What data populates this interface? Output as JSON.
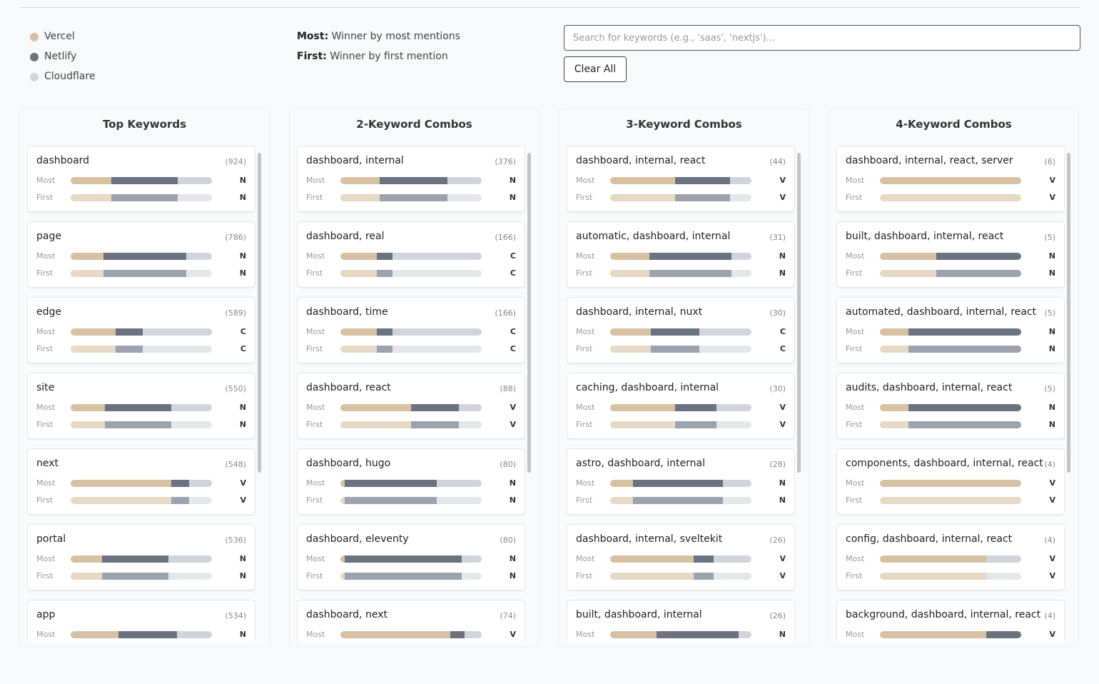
{
  "legend": [
    {
      "name": "Vercel",
      "color": "#d6c2a3",
      "light_color": "#e6d9c5"
    },
    {
      "name": "Netlify",
      "color": "#6b7280",
      "light_color": "#9ca3af"
    },
    {
      "name": "Cloudflare",
      "color": "#d1d5db",
      "light_color": "#e5e7eb"
    }
  ],
  "definitions": [
    {
      "term": "Most:",
      "text": "Winner by most mentions"
    },
    {
      "term": "First:",
      "text": "Winner by first mention"
    }
  ],
  "search": {
    "placeholder": "Search for keywords (e.g., 'saas', 'nextjs')..."
  },
  "clear_button": "Clear All",
  "row_labels": {
    "most": "Most",
    "first": "First"
  },
  "columns": [
    {
      "title": "Top Keywords",
      "cards": [
        {
          "keyword": "dashboard",
          "count": "(924)",
          "most": {
            "shares": [
              29,
              47,
              24
            ],
            "winner": "N"
          },
          "first": {
            "shares": [
              29,
              47,
              24
            ],
            "winner": "N"
          }
        },
        {
          "keyword": "page",
          "count": "(786)",
          "most": {
            "shares": [
              23,
              59,
              18
            ],
            "winner": "N"
          },
          "first": {
            "shares": [
              23,
              59,
              18
            ],
            "winner": "N"
          }
        },
        {
          "keyword": "edge",
          "count": "(589)",
          "most": {
            "shares": [
              32,
              19,
              49
            ],
            "winner": "C"
          },
          "first": {
            "shares": [
              32,
              19,
              49
            ],
            "winner": "C"
          }
        },
        {
          "keyword": "site",
          "count": "(550)",
          "most": {
            "shares": [
              24,
              47,
              29
            ],
            "winner": "N"
          },
          "first": {
            "shares": [
              24,
              47,
              29
            ],
            "winner": "N"
          }
        },
        {
          "keyword": "next",
          "count": "(548)",
          "most": {
            "shares": [
              71,
              13,
              16
            ],
            "winner": "V"
          },
          "first": {
            "shares": [
              71,
              13,
              16
            ],
            "winner": "V"
          }
        },
        {
          "keyword": "portal",
          "count": "(536)",
          "most": {
            "shares": [
              22,
              47,
              31
            ],
            "winner": "N"
          },
          "first": {
            "shares": [
              22,
              47,
              31
            ],
            "winner": "N"
          }
        },
        {
          "keyword": "app",
          "count": "(534)",
          "most": {
            "shares": [
              34,
              41,
              25
            ],
            "winner": "N"
          }
        }
      ]
    },
    {
      "title": "2-Keyword Combos",
      "cards": [
        {
          "keyword": "dashboard, internal",
          "count": "(376)",
          "most": {
            "shares": [
              28,
              48,
              24
            ],
            "winner": "N"
          },
          "first": {
            "shares": [
              28,
              48,
              24
            ],
            "winner": "N"
          }
        },
        {
          "keyword": "dashboard, real",
          "count": "(166)",
          "most": {
            "shares": [
              26,
              11,
              63
            ],
            "winner": "C"
          },
          "first": {
            "shares": [
              26,
              11,
              63
            ],
            "winner": "C"
          }
        },
        {
          "keyword": "dashboard, time",
          "count": "(166)",
          "most": {
            "shares": [
              26,
              11,
              63
            ],
            "winner": "C"
          },
          "first": {
            "shares": [
              26,
              11,
              63
            ],
            "winner": "C"
          }
        },
        {
          "keyword": "dashboard, react",
          "count": "(88)",
          "most": {
            "shares": [
              50,
              34,
              16
            ],
            "winner": "V"
          },
          "first": {
            "shares": [
              50,
              34,
              16
            ],
            "winner": "V"
          }
        },
        {
          "keyword": "dashboard, hugo",
          "count": "(80)",
          "most": {
            "shares": [
              3,
              65,
              32
            ],
            "winner": "N"
          },
          "first": {
            "shares": [
              3,
              65,
              32
            ],
            "winner": "N"
          }
        },
        {
          "keyword": "dashboard, eleventy",
          "count": "(80)",
          "most": {
            "shares": [
              3,
              83,
              14
            ],
            "winner": "N"
          },
          "first": {
            "shares": [
              3,
              83,
              14
            ],
            "winner": "N"
          }
        },
        {
          "keyword": "dashboard, next",
          "count": "(74)",
          "most": {
            "shares": [
              78,
              10,
              12
            ],
            "winner": "V"
          }
        }
      ]
    },
    {
      "title": "3-Keyword Combos",
      "cards": [
        {
          "keyword": "dashboard, internal, react",
          "count": "(44)",
          "most": {
            "shares": [
              46,
              39,
              15
            ],
            "winner": "V"
          },
          "first": {
            "shares": [
              46,
              39,
              15
            ],
            "winner": "V"
          }
        },
        {
          "keyword": "automatic, dashboard, internal",
          "count": "(31)",
          "most": {
            "shares": [
              28,
              58,
              14
            ],
            "winner": "N"
          },
          "first": {
            "shares": [
              28,
              58,
              14
            ],
            "winner": "N"
          }
        },
        {
          "keyword": "dashboard, internal, nuxt",
          "count": "(30)",
          "most": {
            "shares": [
              29,
              34,
              37
            ],
            "winner": "C"
          },
          "first": {
            "shares": [
              29,
              34,
              37
            ],
            "winner": "C"
          }
        },
        {
          "keyword": "caching, dashboard, internal",
          "count": "(30)",
          "most": {
            "shares": [
              46,
              29,
              25
            ],
            "winner": "V"
          },
          "first": {
            "shares": [
              46,
              29,
              25
            ],
            "winner": "V"
          }
        },
        {
          "keyword": "astro, dashboard, internal",
          "count": "(28)",
          "most": {
            "shares": [
              16,
              64,
              20
            ],
            "winner": "N"
          },
          "first": {
            "shares": [
              16,
              64,
              20
            ],
            "winner": "N"
          }
        },
        {
          "keyword": "dashboard, internal, sveltekit",
          "count": "(26)",
          "most": {
            "shares": [
              59,
              14,
              27
            ],
            "winner": "V"
          },
          "first": {
            "shares": [
              59,
              14,
              27
            ],
            "winner": "V"
          }
        },
        {
          "keyword": "built, dashboard, internal",
          "count": "(26)",
          "most": {
            "shares": [
              33,
              58,
              9
            ],
            "winner": "N"
          }
        }
      ]
    },
    {
      "title": "4-Keyword Combos",
      "cards": [
        {
          "keyword": "dashboard, internal, react, server",
          "count": "(6)",
          "most": {
            "shares": [
              100,
              0,
              0
            ],
            "winner": "V"
          },
          "first": {
            "shares": [
              100,
              0,
              0
            ],
            "winner": "V"
          }
        },
        {
          "keyword": "built, dashboard, internal, react",
          "count": "(5)",
          "most": {
            "shares": [
              40,
              60,
              0
            ],
            "winner": "N"
          },
          "first": {
            "shares": [
              40,
              60,
              0
            ],
            "winner": "N"
          }
        },
        {
          "keyword": "automated, dashboard, internal, react",
          "count": "(5)",
          "most": {
            "shares": [
              20,
              80,
              0
            ],
            "winner": "N"
          },
          "first": {
            "shares": [
              20,
              80,
              0
            ],
            "winner": "N"
          }
        },
        {
          "keyword": "audits, dashboard, internal, react",
          "count": "(5)",
          "most": {
            "shares": [
              20,
              80,
              0
            ],
            "winner": "N"
          },
          "first": {
            "shares": [
              20,
              80,
              0
            ],
            "winner": "N"
          }
        },
        {
          "keyword": "components, dashboard, internal, react",
          "count": "(4)",
          "most": {
            "shares": [
              100,
              0,
              0
            ],
            "winner": "V"
          },
          "first": {
            "shares": [
              100,
              0,
              0
            ],
            "winner": "V"
          }
        },
        {
          "keyword": "config, dashboard, internal, react",
          "count": "(4)",
          "most": {
            "shares": [
              75,
              0,
              25
            ],
            "winner": "V"
          },
          "first": {
            "shares": [
              75,
              0,
              25
            ],
            "winner": "V"
          }
        },
        {
          "keyword": "background, dashboard, internal, react",
          "count": "(4)",
          "most": {
            "shares": [
              75,
              25,
              0
            ],
            "winner": "V"
          }
        }
      ]
    }
  ]
}
